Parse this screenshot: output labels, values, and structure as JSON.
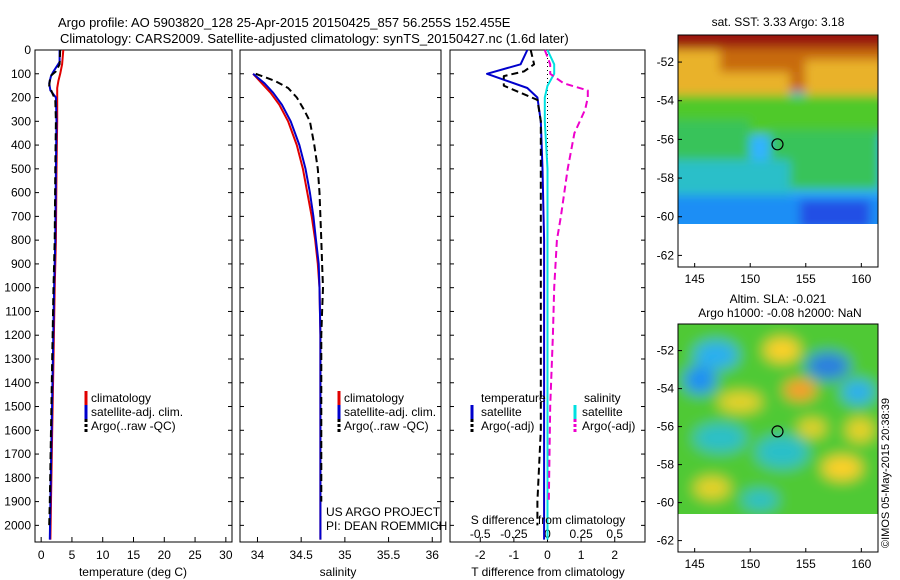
{
  "header": {
    "line1": "Argo profile: AO 5903820_128 25-Apr-2015 20150425_857 56.255S 152.455E",
    "line2": "Climatology: CARS2009. Satellite-adjusted climatology: synTS_20150427.nc (1.6d later)"
  },
  "colors": {
    "climatology": "#e00000",
    "satellite": "#0000cc",
    "argo": "#000000",
    "sal_satellite": "#00e0e0",
    "sal_argo": "#ee00cc"
  },
  "depth_ticks": [
    "0",
    "100",
    "200",
    "300",
    "400",
    "500",
    "600",
    "700",
    "800",
    "900",
    "1000",
    "1100",
    "1200",
    "1300",
    "1400",
    "1500",
    "1600",
    "1700",
    "1800",
    "1900",
    "2000"
  ],
  "chart_data": [
    {
      "type": "line",
      "xlabel": "temperature (deg C)",
      "xlim": [
        -1,
        31
      ],
      "xticks": [
        "0",
        "5",
        "10",
        "15",
        "20",
        "25",
        "30"
      ],
      "xtick_values": [
        0,
        5,
        10,
        15,
        20,
        25,
        30
      ],
      "ylim": [
        2070,
        0
      ],
      "legend": [
        "climatology",
        "satellite-adj. clim.",
        "Argo(..raw -QC)"
      ],
      "series": [
        {
          "name": "climatology",
          "points": [
            [
              3.6,
              0
            ],
            [
              3.4,
              60
            ],
            [
              3.1,
              100
            ],
            [
              2.8,
              130
            ],
            [
              2.6,
              160
            ],
            [
              2.6,
              200
            ],
            [
              2.6,
              300
            ],
            [
              2.5,
              500
            ],
            [
              2.4,
              800
            ],
            [
              2.2,
              1000
            ],
            [
              2.0,
              1300
            ],
            [
              1.8,
              1600
            ],
            [
              1.6,
              1900
            ],
            [
              1.5,
              2060
            ]
          ]
        },
        {
          "name": "satellite-adj. clim.",
          "points": [
            [
              3.0,
              0
            ],
            [
              3.0,
              50
            ],
            [
              2.0,
              90
            ],
            [
              1.6,
              110
            ],
            [
              1.3,
              140
            ],
            [
              1.5,
              170
            ],
            [
              2.4,
              200
            ],
            [
              2.5,
              300
            ],
            [
              2.4,
              500
            ],
            [
              2.3,
              800
            ],
            [
              2.1,
              1000
            ],
            [
              1.9,
              1300
            ],
            [
              1.7,
              1600
            ],
            [
              1.5,
              1900
            ],
            [
              1.4,
              2060
            ]
          ]
        },
        {
          "name": "Argo(..raw -QC)",
          "points": [
            [
              3.1,
              0
            ],
            [
              3.0,
              60
            ],
            [
              2.4,
              90
            ],
            [
              1.5,
              110
            ],
            [
              1.3,
              150
            ],
            [
              1.8,
              180
            ],
            [
              2.3,
              210
            ],
            [
              2.4,
              300
            ],
            [
              2.3,
              500
            ],
            [
              2.2,
              800
            ],
            [
              2.0,
              1000
            ],
            [
              1.8,
              1300
            ],
            [
              1.6,
              1600
            ],
            [
              1.4,
              1900
            ],
            [
              1.3,
              2000
            ]
          ]
        }
      ]
    },
    {
      "type": "line",
      "xlabel": "salinity",
      "xlim": [
        33.8,
        36.1
      ],
      "xticks": [
        "34",
        "34.5",
        "35",
        "35.5",
        "36"
      ],
      "xtick_values": [
        34,
        34.5,
        35,
        35.5,
        36
      ],
      "ylim": [
        2070,
        0
      ],
      "legend": [
        "climatology",
        "satellite-adj. clim.",
        "Argo(..raw -QC)"
      ],
      "annotation": [
        "US ARGO PROJECT",
        "PI: DEAN ROEMMICH"
      ],
      "series": [
        {
          "name": "climatology",
          "points": [
            [
              33.95,
              100
            ],
            [
              34.05,
              140
            ],
            [
              34.15,
              180
            ],
            [
              34.25,
              230
            ],
            [
              34.35,
              300
            ],
            [
              34.45,
              400
            ],
            [
              34.52,
              500
            ],
            [
              34.57,
              600
            ],
            [
              34.62,
              700
            ],
            [
              34.66,
              800
            ],
            [
              34.69,
              900
            ],
            [
              34.71,
              1000
            ],
            [
              34.72,
              1200
            ],
            [
              34.72,
              1500
            ],
            [
              34.72,
              2060
            ]
          ]
        },
        {
          "name": "satellite-adj. clim.",
          "points": [
            [
              33.95,
              100
            ],
            [
              34.08,
              140
            ],
            [
              34.18,
              180
            ],
            [
              34.28,
              230
            ],
            [
              34.38,
              300
            ],
            [
              34.48,
              400
            ],
            [
              34.55,
              500
            ],
            [
              34.6,
              600
            ],
            [
              34.64,
              700
            ],
            [
              34.67,
              800
            ],
            [
              34.7,
              900
            ],
            [
              34.71,
              1000
            ],
            [
              34.72,
              1200
            ],
            [
              34.72,
              1500
            ],
            [
              34.72,
              2060
            ]
          ]
        },
        {
          "name": "Argo(..raw -QC)",
          "points": [
            [
              33.98,
              100
            ],
            [
              34.2,
              130
            ],
            [
              34.35,
              160
            ],
            [
              34.45,
              200
            ],
            [
              34.53,
              250
            ],
            [
              34.6,
              300
            ],
            [
              34.65,
              400
            ],
            [
              34.69,
              500
            ],
            [
              34.71,
              600
            ],
            [
              34.72,
              700
            ],
            [
              34.73,
              800
            ],
            [
              34.74,
              900
            ],
            [
              34.75,
              1000
            ],
            [
              34.74,
              1100
            ],
            [
              34.73,
              1200
            ],
            [
              34.73,
              1500
            ],
            [
              34.73,
              1900
            ]
          ]
        }
      ]
    },
    {
      "type": "line",
      "xlabel": "T difference from climatology",
      "xlabel_top": "S difference from climatology",
      "xlim": [
        -2.9,
        2.9
      ],
      "xticks": [
        "-2",
        "-1",
        "0",
        "1",
        "2"
      ],
      "xtick_values": [
        -2,
        -1,
        0,
        1,
        2
      ],
      "xticks_top": [
        "-0.5",
        "-0.25",
        "0",
        "0.25",
        "0.5"
      ],
      "xtick_top_values": [
        -0.5,
        -0.25,
        0,
        0.25,
        0.5
      ],
      "ylim": [
        2070,
        0
      ],
      "legend_titles": [
        "temperature",
        "salinity"
      ],
      "legend": [
        "satellite",
        "Argo(-adj)",
        "satellite",
        "Argo(-adj)"
      ],
      "series": [
        {
          "name": "temperature satellite",
          "points": [
            [
              -0.6,
              0
            ],
            [
              -0.8,
              60
            ],
            [
              -1.8,
              100
            ],
            [
              -1.2,
              130
            ],
            [
              -0.6,
              160
            ],
            [
              -0.3,
              200
            ],
            [
              -0.2,
              300
            ],
            [
              -0.15,
              500
            ],
            [
              -0.1,
              800
            ],
            [
              -0.1,
              1000
            ],
            [
              -0.1,
              1300
            ],
            [
              -0.1,
              1600
            ],
            [
              -0.1,
              1900
            ],
            [
              -0.1,
              2060
            ]
          ]
        },
        {
          "name": "temperature Argo(-adj)",
          "points": [
            [
              -0.5,
              0
            ],
            [
              -0.4,
              60
            ],
            [
              -0.7,
              90
            ],
            [
              -1.3,
              110
            ],
            [
              -1.3,
              150
            ],
            [
              -0.8,
              180
            ],
            [
              -0.3,
              210
            ],
            [
              -0.2,
              300
            ],
            [
              -0.2,
              500
            ],
            [
              -0.2,
              800
            ],
            [
              -0.2,
              1000
            ],
            [
              -0.2,
              1300
            ],
            [
              -0.2,
              1600
            ],
            [
              -0.3,
              1900
            ],
            [
              -0.3,
              2000
            ]
          ]
        },
        {
          "name": "salinity satellite",
          "points": [
            [
              0.0,
              0
            ],
            [
              0.05,
              60
            ],
            [
              0.05,
              100
            ],
            [
              0.0,
              150
            ],
            [
              -0.02,
              200
            ],
            [
              -0.02,
              300
            ],
            [
              0.0,
              500
            ],
            [
              0.0,
              800
            ],
            [
              0.0,
              1000
            ],
            [
              0.0,
              1300
            ],
            [
              0.0,
              1600
            ],
            [
              0.0,
              1900
            ],
            [
              0.0,
              2060
            ]
          ]
        },
        {
          "name": "salinity Argo(-adj)",
          "points": [
            [
              -0.02,
              0
            ],
            [
              0.02,
              60
            ],
            [
              0.02,
              100
            ],
            [
              0.12,
              140
            ],
            [
              0.3,
              170
            ],
            [
              0.3,
              200
            ],
            [
              0.28,
              250
            ],
            [
              0.2,
              350
            ],
            [
              0.15,
              500
            ],
            [
              0.1,
              700
            ],
            [
              0.07,
              800
            ],
            [
              0.05,
              1000
            ],
            [
              0.04,
              1200
            ],
            [
              0.02,
              1500
            ],
            [
              0.01,
              1900
            ]
          ]
        }
      ]
    },
    {
      "type": "heatmap",
      "title": "sat. SST: 3.33 Argo: 3.18",
      "xlim": [
        143.5,
        161.5
      ],
      "ylim": [
        -62.6,
        -50.6
      ],
      "xticks": [
        "145",
        "150",
        "155",
        "160"
      ],
      "xtick_values": [
        145,
        150,
        155,
        160
      ],
      "yticks": [
        "-52",
        "-54",
        "-56",
        "-58",
        "-60",
        "-62"
      ],
      "ytick_values": [
        -52,
        -54,
        -56,
        -58,
        -60,
        -62
      ],
      "marker": [
        152.455,
        -56.255
      ]
    },
    {
      "type": "heatmap",
      "title": "Altim. SLA: -0.021",
      "subtitle": "Argo h1000: -0.08 h2000: NaN",
      "side_label": "©IMOS 05-May-2015 20:38:39",
      "xlim": [
        143.5,
        161.5
      ],
      "ylim": [
        -62.6,
        -50.6
      ],
      "xticks": [
        "145",
        "150",
        "155",
        "160"
      ],
      "xtick_values": [
        145,
        150,
        155,
        160
      ],
      "yticks": [
        "-52",
        "-54",
        "-56",
        "-58",
        "-60",
        "-62"
      ],
      "ytick_values": [
        -52,
        -54,
        -56,
        -58,
        -60,
        -62
      ],
      "marker": [
        152.455,
        -56.255
      ]
    }
  ]
}
